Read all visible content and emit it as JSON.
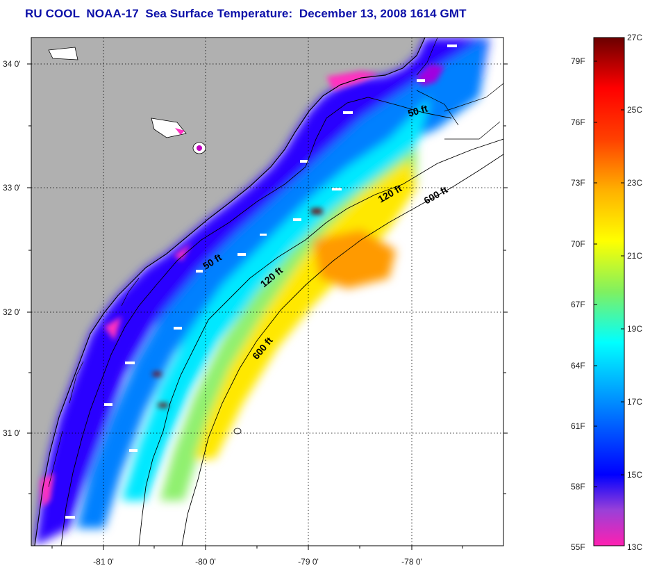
{
  "title": "RU COOL  NOAA-17  Sea Surface Temperature:  December 13, 2008 1614 GMT",
  "map": {
    "lat_ticks": [
      "34 0'",
      "33 0'",
      "32 0'",
      "31 0'"
    ],
    "lon_ticks": [
      "-81 0'",
      "-80 0'",
      "-79 0'",
      "-78 0'"
    ],
    "isobath_labels": [
      {
        "text": "50 ft",
        "depth": "50"
      },
      {
        "text": "50 ft",
        "depth": "50"
      },
      {
        "text": "120 ft",
        "depth": "120"
      },
      {
        "text": "120 ft",
        "depth": "120"
      },
      {
        "text": "600 ft",
        "depth": "600"
      },
      {
        "text": "600 ft",
        "depth": "600"
      }
    ],
    "colors": {
      "land": "#b0b0b0",
      "ocean_no_data": "#ffffff",
      "coast_line": "#000000"
    }
  },
  "colorbar": {
    "fahrenheit_labels": [
      "79F",
      "76F",
      "73F",
      "70F",
      "67F",
      "64F",
      "61F",
      "58F",
      "55F"
    ],
    "celsius_labels": [
      "27C",
      "25C",
      "23C",
      "21C",
      "19C",
      "17C",
      "15C",
      "13C"
    ],
    "color_stops": [
      "#6b0000",
      "#ff0000",
      "#ff7a00",
      "#ffd000",
      "#ffff00",
      "#7cf060",
      "#00ffff",
      "#0080ff",
      "#0000ff",
      "#9a40d8",
      "#ff20b0"
    ]
  }
}
